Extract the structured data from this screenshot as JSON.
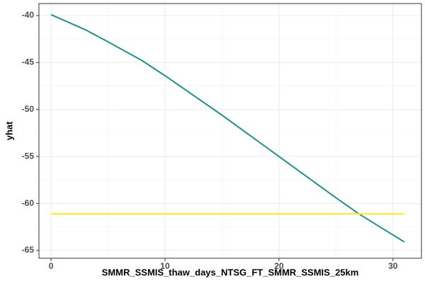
{
  "chart_data": {
    "type": "line",
    "x_label": "SMMR_SSMIS_thaw_days_NTSG_FT_SMMR_SSMIS_25km",
    "y_label": "yhat",
    "x": [
      0,
      3,
      5,
      8,
      10,
      15,
      20,
      25,
      27,
      31
    ],
    "series": [
      {
        "color": "#21908c",
        "values": [
          -39.9,
          -41.5,
          -42.8,
          -44.8,
          -46.4,
          -50.6,
          -55.0,
          -59.4,
          -61.1,
          -64.1
        ]
      },
      {
        "color": "#fde725",
        "values": [
          -61.1,
          -61.1,
          -61.1,
          -61.1,
          -61.1,
          -61.1,
          -61.1,
          -61.1,
          -61.1,
          -61.1
        ]
      }
    ],
    "xlim": [
      -1.06,
      32.5
    ],
    "xticks": [
      0,
      10,
      20,
      30
    ],
    "ylim": [
      -65.83,
      -38.72
    ],
    "yticks": [
      -40,
      -45,
      -50,
      -55,
      -60,
      -65
    ],
    "grid": true
  }
}
